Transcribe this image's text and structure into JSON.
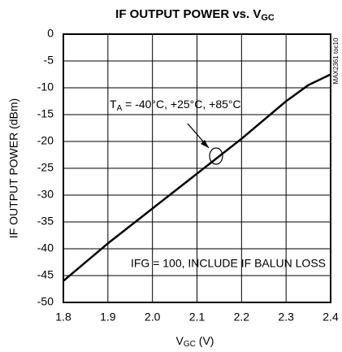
{
  "chart_data": {
    "type": "line",
    "title": {
      "text": "IF OUTPUT POWER vs. V",
      "sub": "GC"
    },
    "x_label": {
      "text": "V",
      "sub": "GC",
      "rest": " (V)"
    },
    "y_label": "IF OUTPUT POWER (dBm)",
    "side_note": "MAX2361 toc10",
    "annotations": [
      {
        "text": "T",
        "sub": "A",
        "rest": " = -40°C, +25°C, +85°C"
      },
      {
        "text": "IFG = 100, INCLUDE IF BALUN LOSS"
      }
    ],
    "x": [
      1.8,
      1.9,
      2.0,
      2.1,
      2.2,
      2.3,
      2.35,
      2.4
    ],
    "series": [
      {
        "color": "#000000",
        "values": [
          -46,
          -39,
          -32.5,
          -26,
          -19.5,
          -12.5,
          -9.5,
          -7.5
        ]
      }
    ],
    "xlim": [
      1.8,
      2.4
    ],
    "xticks": [
      1.8,
      1.9,
      {
        "value": 2,
        "label": "2.0"
      },
      2.1,
      2.2,
      2.3,
      2.4
    ],
    "ylim": [
      -50,
      0
    ],
    "yticks": [
      0,
      -5,
      -10,
      -15,
      -20,
      -25,
      -30,
      -35,
      -40,
      -45,
      -50
    ],
    "grid": true
  }
}
